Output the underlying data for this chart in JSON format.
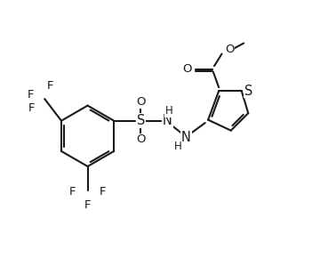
{
  "bg": "#ffffff",
  "lc": "#1a1a1a",
  "lw": 1.5,
  "fs": 9.5,
  "figsize": [
    3.51,
    3.09
  ],
  "dpi": 100,
  "xlim": [
    0,
    10
  ],
  "ylim": [
    0,
    9
  ]
}
